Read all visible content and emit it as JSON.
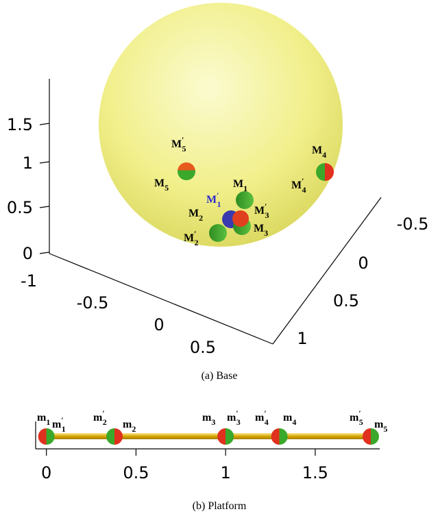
{
  "base": {
    "caption": "(a) Base",
    "z_ticks": [
      "0",
      "0.5",
      "1",
      "1.5"
    ],
    "x_ticks": [
      "-1",
      "-0.5",
      "0",
      "0.5"
    ],
    "y_ticks": [
      "-0.5",
      "0",
      "0.5",
      "1"
    ],
    "labels": [
      {
        "main": "M",
        "sup": "′",
        "sub": "5"
      },
      {
        "main": "M",
        "sub": "5"
      },
      {
        "main": "M",
        "sub": "4"
      },
      {
        "main": "M",
        "sup": "′",
        "sub": "4"
      },
      {
        "main": "M",
        "sub": "1"
      },
      {
        "main": "M",
        "sup": "′",
        "sub": "1",
        "color": "#2a2ad0"
      },
      {
        "main": "M",
        "sub": "2"
      },
      {
        "main": "M",
        "sup": "′",
        "sub": "3"
      },
      {
        "main": "M",
        "sub": "3"
      },
      {
        "main": "M",
        "sup": "′",
        "sub": "2"
      }
    ]
  },
  "platform": {
    "caption": "(b) Platform",
    "xlim": [
      -0.06,
      1.86
    ],
    "xticks": [
      0,
      {
        "value": 0.5,
        "label": "0.5"
      },
      1,
      {
        "value": 1.5,
        "label": "1.5"
      }
    ],
    "points": [
      0,
      0.38,
      1.0,
      1.3,
      1.81
    ],
    "labels": [
      {
        "main": "m",
        "sub": "1"
      },
      {
        "main": "m",
        "sup": "′",
        "sub": "1"
      },
      {
        "main": "m",
        "sup": "′",
        "sub": "2"
      },
      {
        "main": "m",
        "sub": "2"
      },
      {
        "main": "m",
        "sub": "3"
      },
      {
        "main": "m",
        "sup": "′",
        "sub": "3"
      },
      {
        "main": "m",
        "sup": "′",
        "sub": "4"
      },
      {
        "main": "m",
        "sub": "4"
      },
      {
        "main": "m",
        "sup": "′",
        "sub": "5"
      },
      {
        "main": "m",
        "sub": "5"
      }
    ]
  }
}
